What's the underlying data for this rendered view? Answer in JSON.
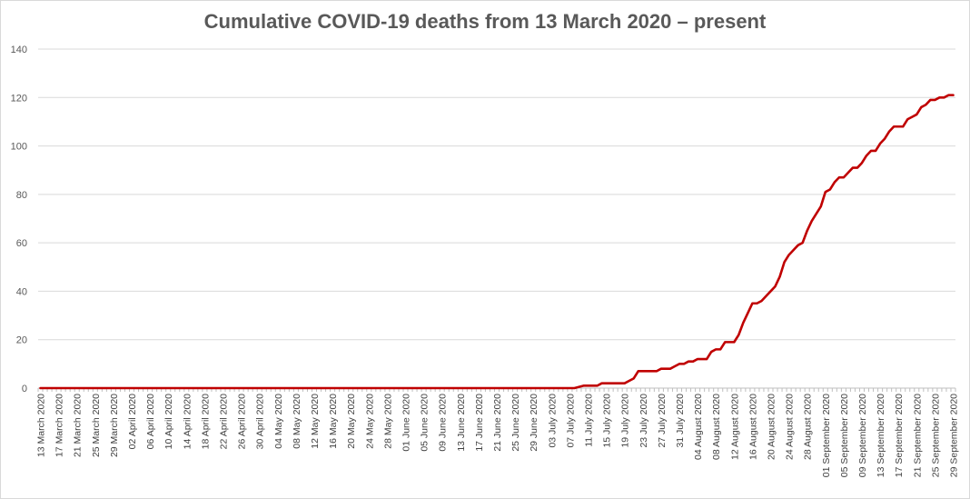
{
  "chart_data": {
    "type": "line",
    "title": "Cumulative COVID-19 deaths from 13 March 2020 – present",
    "xlabel": "",
    "ylabel": "",
    "ylim": [
      0,
      140
    ],
    "yticks": [
      0,
      20,
      40,
      60,
      80,
      100,
      120,
      140
    ],
    "x_start": "2020-03-13",
    "x_end": "2020-09-30",
    "xtick_labels": [
      "13 March 2020",
      "17 March 2020",
      "21 March 2020",
      "25 March 2020",
      "29 March 2020",
      "02 April 2020",
      "06 April 2020",
      "10 April 2020",
      "14 April 2020",
      "18 April 2020",
      "22 April 2020",
      "26 April 2020",
      "30 April 2020",
      "04 May 2020",
      "08 May 2020",
      "12 May 2020",
      "16 May 2020",
      "20 May 2020",
      "24 May 2020",
      "28 May 2020",
      "01 June 2020",
      "05 June 2020",
      "09 June 2020",
      "13 June 2020",
      "17 June 2020",
      "21 June 2020",
      "25 June 2020",
      "29 June 2020",
      "03 July 2020",
      "07 July 2020",
      "11 July 2020",
      "15 July 2020",
      "19 July 2020",
      "23 July 2020",
      "27 July 2020",
      "31 July 2020",
      "04 August 2020",
      "08 August 2020",
      "12 August 2020",
      "16 August 2020",
      "20 August 2020",
      "24 August 2020",
      "28 August 2020",
      "01 September 2020",
      "05 September 2020",
      "09 September 2020",
      "13 September 2020",
      "17 September 2020",
      "21 September 2020",
      "25 September 2020",
      "29 September 2020"
    ],
    "grid": true,
    "legend": "none",
    "line_color": "#c00000",
    "series": [
      {
        "points": [
          [
            "2020-03-13",
            0
          ],
          [
            "2020-07-08",
            0
          ],
          [
            "2020-07-10",
            1
          ],
          [
            "2020-07-13",
            1
          ],
          [
            "2020-07-14",
            2
          ],
          [
            "2020-07-19",
            2
          ],
          [
            "2020-07-20",
            3
          ],
          [
            "2020-07-21",
            4
          ],
          [
            "2020-07-22",
            7
          ],
          [
            "2020-07-26",
            7
          ],
          [
            "2020-07-27",
            8
          ],
          [
            "2020-07-29",
            8
          ],
          [
            "2020-07-30",
            9
          ],
          [
            "2020-07-31",
            10
          ],
          [
            "2020-08-01",
            10
          ],
          [
            "2020-08-02",
            11
          ],
          [
            "2020-08-03",
            11
          ],
          [
            "2020-08-04",
            12
          ],
          [
            "2020-08-06",
            12
          ],
          [
            "2020-08-07",
            15
          ],
          [
            "2020-08-08",
            16
          ],
          [
            "2020-08-09",
            16
          ],
          [
            "2020-08-10",
            19
          ],
          [
            "2020-08-12",
            19
          ],
          [
            "2020-08-13",
            22
          ],
          [
            "2020-08-14",
            27
          ],
          [
            "2020-08-15",
            31
          ],
          [
            "2020-08-16",
            35
          ],
          [
            "2020-08-17",
            35
          ],
          [
            "2020-08-18",
            36
          ],
          [
            "2020-08-19",
            38
          ],
          [
            "2020-08-20",
            40
          ],
          [
            "2020-08-21",
            42
          ],
          [
            "2020-08-22",
            46
          ],
          [
            "2020-08-23",
            52
          ],
          [
            "2020-08-24",
            55
          ],
          [
            "2020-08-25",
            57
          ],
          [
            "2020-08-26",
            59
          ],
          [
            "2020-08-27",
            60
          ],
          [
            "2020-08-28",
            65
          ],
          [
            "2020-08-29",
            69
          ],
          [
            "2020-08-30",
            72
          ],
          [
            "2020-08-31",
            75
          ],
          [
            "2020-09-01",
            81
          ],
          [
            "2020-09-02",
            82
          ],
          [
            "2020-09-03",
            85
          ],
          [
            "2020-09-04",
            87
          ],
          [
            "2020-09-05",
            87
          ],
          [
            "2020-09-06",
            89
          ],
          [
            "2020-09-07",
            91
          ],
          [
            "2020-09-08",
            91
          ],
          [
            "2020-09-09",
            93
          ],
          [
            "2020-09-10",
            96
          ],
          [
            "2020-09-11",
            98
          ],
          [
            "2020-09-12",
            98
          ],
          [
            "2020-09-13",
            101
          ],
          [
            "2020-09-14",
            103
          ],
          [
            "2020-09-15",
            106
          ],
          [
            "2020-09-16",
            108
          ],
          [
            "2020-09-17",
            108
          ],
          [
            "2020-09-18",
            108
          ],
          [
            "2020-09-19",
            111
          ],
          [
            "2020-09-20",
            112
          ],
          [
            "2020-09-21",
            113
          ],
          [
            "2020-09-22",
            116
          ],
          [
            "2020-09-23",
            117
          ],
          [
            "2020-09-24",
            119
          ],
          [
            "2020-09-25",
            119
          ],
          [
            "2020-09-26",
            120
          ],
          [
            "2020-09-27",
            120
          ],
          [
            "2020-09-28",
            121
          ],
          [
            "2020-09-29",
            121
          ]
        ]
      }
    ]
  }
}
